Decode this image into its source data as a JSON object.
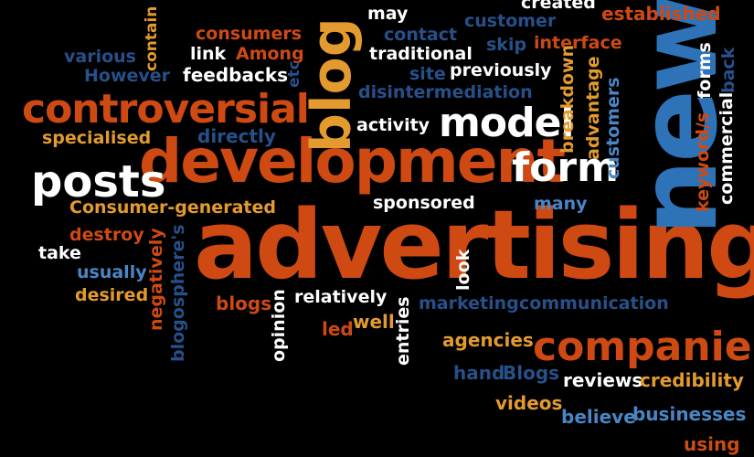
{
  "word_cloud": {
    "words": [
      "advertising",
      "development",
      "new",
      "companies",
      "controversial",
      "posts",
      "model",
      "form",
      "blog",
      "Consumer-generated",
      "marketing",
      "communication",
      "disintermediation",
      "consumers",
      "feedbacks",
      "specialised",
      "directly",
      "sponsored",
      "relatively",
      "opinion",
      "entries",
      "agencies",
      "reviews",
      "credibility",
      "businesses",
      "believe",
      "hand",
      "Blogs",
      "videos",
      "using",
      "previously",
      "traditional",
      "contact",
      "site",
      "customer",
      "skip",
      "interface",
      "established",
      "created",
      "may",
      "activity",
      "breakdown",
      "advantage",
      "customers",
      "keyword/s",
      "forms",
      "commercial",
      "back",
      "many",
      "look",
      "destroy",
      "take",
      "usually",
      "desired",
      "negatively",
      "blogosphere's",
      "blogs",
      "led",
      "well",
      "various",
      "However",
      "link",
      "Among",
      "etc",
      "contain"
    ]
  },
  "colors": {
    "background": "#000000",
    "orange": "#cf4a12",
    "gold": "#e39a2f",
    "blue": "#2e73b8",
    "white": "#ffffff"
  }
}
